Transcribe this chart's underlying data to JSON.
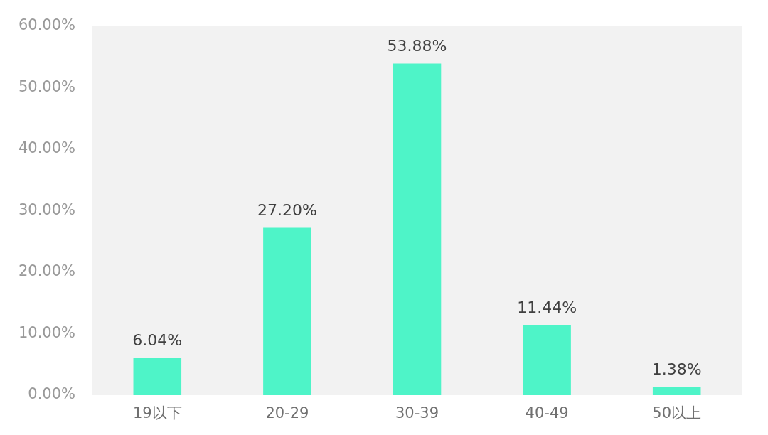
{
  "chart_data": {
    "type": "bar",
    "categories": [
      "19以下",
      "20-29",
      "30-39",
      "40-49",
      "50以上"
    ],
    "values": [
      6.04,
      27.2,
      53.88,
      11.44,
      1.38
    ],
    "value_labels": [
      "6.04%",
      "27.20%",
      "53.88%",
      "11.44%",
      "1.38%"
    ],
    "color": "#4ef4c8",
    "ylim": [
      0,
      60
    ],
    "yticks": [
      {
        "value": 0,
        "label": "0.00%"
      },
      {
        "value": 10,
        "label": "10.00%"
      },
      {
        "value": 20,
        "label": "20.00%"
      },
      {
        "value": 30,
        "label": "30.00%"
      },
      {
        "value": 40,
        "label": "40.00%"
      },
      {
        "value": 50,
        "label": "50.00%"
      },
      {
        "value": 60,
        "label": "60.00%"
      }
    ],
    "grid": false,
    "legend": false
  }
}
